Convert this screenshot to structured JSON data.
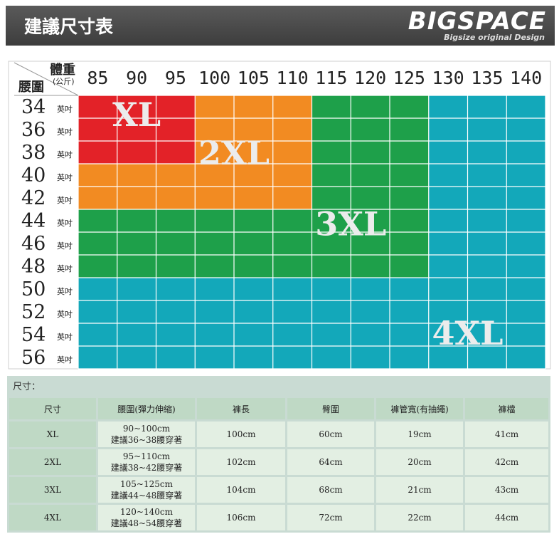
{
  "header": {
    "title": "建議尺寸表",
    "brand": "BIGSPACE",
    "brand_sub": "Bigsize original Design"
  },
  "chart_data": {
    "type": "table",
    "weight_label": "體重",
    "weight_unit": "(公斤)",
    "waist_label": "腰圍",
    "waist_unit": "英吋",
    "weights": [
      "85",
      "90",
      "95",
      "100",
      "105",
      "110",
      "115",
      "120",
      "125",
      "130",
      "135",
      "140"
    ],
    "waists": [
      "34",
      "36",
      "38",
      "40",
      "42",
      "44",
      "46",
      "48",
      "50",
      "52",
      "54",
      "56"
    ],
    "grid": [
      [
        "XL",
        "XL",
        "XL",
        "2XL",
        "2XL",
        "2XL",
        "3XL",
        "3XL",
        "3XL",
        "4XL",
        "4XL",
        "4XL"
      ],
      [
        "XL",
        "XL",
        "XL",
        "2XL",
        "2XL",
        "2XL",
        "3XL",
        "3XL",
        "3XL",
        "4XL",
        "4XL",
        "4XL"
      ],
      [
        "XL",
        "XL",
        "XL",
        "2XL",
        "2XL",
        "2XL",
        "3XL",
        "3XL",
        "3XL",
        "4XL",
        "4XL",
        "4XL"
      ],
      [
        "2XL",
        "2XL",
        "2XL",
        "2XL",
        "2XL",
        "2XL",
        "3XL",
        "3XL",
        "3XL",
        "4XL",
        "4XL",
        "4XL"
      ],
      [
        "2XL",
        "2XL",
        "2XL",
        "2XL",
        "2XL",
        "2XL",
        "3XL",
        "3XL",
        "3XL",
        "4XL",
        "4XL",
        "4XL"
      ],
      [
        "3XL",
        "3XL",
        "3XL",
        "3XL",
        "3XL",
        "3XL",
        "3XL",
        "3XL",
        "3XL",
        "4XL",
        "4XL",
        "4XL"
      ],
      [
        "3XL",
        "3XL",
        "3XL",
        "3XL",
        "3XL",
        "3XL",
        "3XL",
        "3XL",
        "3XL",
        "4XL",
        "4XL",
        "4XL"
      ],
      [
        "3XL",
        "3XL",
        "3XL",
        "3XL",
        "3XL",
        "3XL",
        "3XL",
        "3XL",
        "3XL",
        "4XL",
        "4XL",
        "4XL"
      ],
      [
        "4XL",
        "4XL",
        "4XL",
        "4XL",
        "4XL",
        "4XL",
        "4XL",
        "4XL",
        "4XL",
        "4XL",
        "4XL",
        "4XL"
      ],
      [
        "4XL",
        "4XL",
        "4XL",
        "4XL",
        "4XL",
        "4XL",
        "4XL",
        "4XL",
        "4XL",
        "4XL",
        "4XL",
        "4XL"
      ],
      [
        "4XL",
        "4XL",
        "4XL",
        "4XL",
        "4XL",
        "4XL",
        "4XL",
        "4XL",
        "4XL",
        "4XL",
        "4XL",
        "4XL"
      ],
      [
        "4XL",
        "4XL",
        "4XL",
        "4XL",
        "4XL",
        "4XL",
        "4XL",
        "4XL",
        "4XL",
        "4XL",
        "4XL",
        "4XL"
      ]
    ],
    "size_labels": [
      "XL",
      "2XL",
      "3XL",
      "4XL"
    ],
    "colors": {
      "XL": "#e32228",
      "2XL": "#f28b22",
      "3XL": "#1ea04a",
      "4XL": "#13a8ba"
    }
  },
  "spec_table": {
    "caption": "尺寸：",
    "headers": [
      "尺寸",
      "腰圍(彈力伸縮)",
      "褲長",
      "臀圍",
      "褲管寬(有抽繩)",
      "褲檔"
    ],
    "rows": [
      {
        "size": "XL",
        "waist_range": "90~100cm",
        "waist_note": "建議36~38腰穿著",
        "length": "100cm",
        "hip": "60cm",
        "leg": "19cm",
        "crotch": "41cm"
      },
      {
        "size": "2XL",
        "waist_range": "95~110cm",
        "waist_note": "建議38~42腰穿著",
        "length": "102cm",
        "hip": "64cm",
        "leg": "20cm",
        "crotch": "42cm"
      },
      {
        "size": "3XL",
        "waist_range": "105~125cm",
        "waist_note": "建議44~48腰穿著",
        "length": "104cm",
        "hip": "68cm",
        "leg": "21cm",
        "crotch": "43cm"
      },
      {
        "size": "4XL",
        "waist_range": "120~140cm",
        "waist_note": "建議48~54腰穿著",
        "length": "106cm",
        "hip": "72cm",
        "leg": "22cm",
        "crotch": "44cm"
      }
    ]
  }
}
